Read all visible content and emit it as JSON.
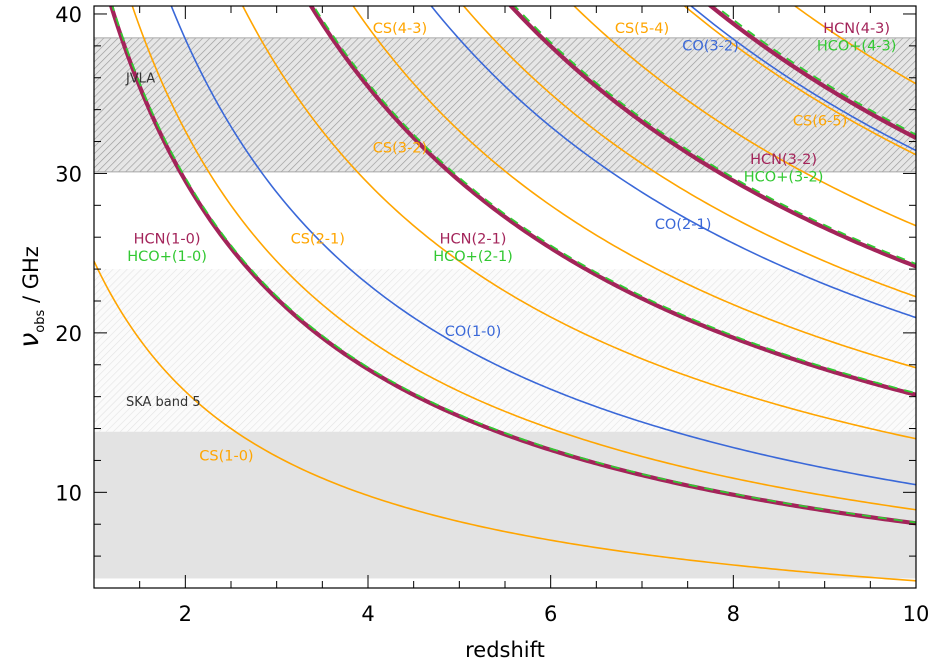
{
  "chart_data": {
    "type": "line",
    "xlabel": "redshift",
    "ylabel": {
      "symbol": "ν",
      "subscript": "obs",
      "unit": " / GHz"
    },
    "xlim": [
      1,
      10
    ],
    "ylim": [
      4,
      40.5
    ],
    "x_ticks": [
      2,
      4,
      6,
      8,
      10
    ],
    "y_ticks": [
      10,
      20,
      30,
      40
    ],
    "x_minor_step": 0.5,
    "y_minor_step": 2,
    "grid": false,
    "colors": {
      "CS": "#ffa500",
      "CO": "#3a68d8",
      "HCN": "#a3245a",
      "HCO+": "#32c832",
      "band_hatch": "#9e9e9e",
      "band_fill_ska_low": "#e3e3e3"
    },
    "bands": [
      {
        "name": "JVLA",
        "label": "JVLA",
        "ymin": 30.1,
        "ymax": 38.5,
        "style": "hatch-dense",
        "label_x": 1.35,
        "label_y": 35.7
      },
      {
        "name": "SKA band 5",
        "label": "SKA band 5",
        "ymin": 13.8,
        "ymax": 24.0,
        "style": "hatch-light",
        "label_x": 1.35,
        "label_y": 15.4
      },
      {
        "name": "SKA band 5 lower",
        "label": "",
        "ymin": 4.6,
        "ymax": 13.8,
        "style": "fill",
        "label_x": null,
        "label_y": null
      }
    ],
    "series": [
      {
        "name": "CS(1-0)",
        "species": "CS",
        "rest_ghz": 48.99,
        "label": "CS(1-0)",
        "label_x": 2.45,
        "label_y": 12.0
      },
      {
        "name": "CS(2-1)",
        "species": "CS",
        "rest_ghz": 97.98,
        "label": "CS(2-1)",
        "label_x": 3.45,
        "label_y": 25.6
      },
      {
        "name": "CS(3-2)",
        "species": "CS",
        "rest_ghz": 146.97,
        "label": "CS(3-2)",
        "label_x": 4.35,
        "label_y": 31.3
      },
      {
        "name": "CS(4-3)",
        "species": "CS",
        "rest_ghz": 195.95,
        "label": "CS(4-3)",
        "label_x": 4.35,
        "label_y": 38.8
      },
      {
        "name": "CS(5-4)",
        "species": "CS",
        "rest_ghz": 244.94,
        "label": "CS(5-4)",
        "label_x": 7.0,
        "label_y": 38.8
      },
      {
        "name": "CS(6-5)",
        "species": "CS",
        "rest_ghz": 293.91,
        "label": "CS(6-5)",
        "label_x": 8.95,
        "label_y": 33.0
      },
      {
        "name": "CS(7-6)",
        "species": "CS",
        "rest_ghz": 342.88,
        "label": "",
        "label_x": null,
        "label_y": null
      },
      {
        "name": "CS(8-7)",
        "species": "CS",
        "rest_ghz": 391.85,
        "label": "",
        "label_x": null,
        "label_y": null
      },
      {
        "name": "CO(1-0)",
        "species": "CO",
        "rest_ghz": 115.27,
        "label": "CO(1-0)",
        "label_x": 5.15,
        "label_y": 19.8
      },
      {
        "name": "CO(2-1)",
        "species": "CO",
        "rest_ghz": 230.54,
        "label": "CO(2-1)",
        "label_x": 7.45,
        "label_y": 26.5
      },
      {
        "name": "CO(3-2)",
        "species": "CO",
        "rest_ghz": 345.8,
        "label": "CO(3-2)",
        "label_x": 7.75,
        "label_y": 37.7
      },
      {
        "name": "HCN(1-0)",
        "species": "HCN",
        "rest_ghz": 88.63,
        "label": "HCN(1-0)",
        "label_x": 1.8,
        "label_y": 25.6
      },
      {
        "name": "HCN(2-1)",
        "species": "HCN",
        "rest_ghz": 177.26,
        "label": "HCN(2-1)",
        "label_x": 5.15,
        "label_y": 25.6
      },
      {
        "name": "HCN(3-2)",
        "species": "HCN",
        "rest_ghz": 265.89,
        "label": "HCN(3-2)",
        "label_x": 8.55,
        "label_y": 30.6
      },
      {
        "name": "HCN(4-3)",
        "species": "HCN",
        "rest_ghz": 354.51,
        "label": "HCN(4-3)",
        "label_x": 9.35,
        "label_y": 38.8
      },
      {
        "name": "HCO+(1-0)",
        "species": "HCO+",
        "rest_ghz": 89.19,
        "label": "HCO+(1-0)",
        "label_x": 1.8,
        "label_y": 24.5
      },
      {
        "name": "HCO+(2-1)",
        "species": "HCO+",
        "rest_ghz": 178.38,
        "label": "HCO+(2-1)",
        "label_x": 5.15,
        "label_y": 24.5
      },
      {
        "name": "HCO+(3-2)",
        "species": "HCO+",
        "rest_ghz": 267.56,
        "label": "HCO+(3-2)",
        "label_x": 8.55,
        "label_y": 29.5
      },
      {
        "name": "HCO+(4-3)",
        "species": "HCO+",
        "rest_ghz": 356.73,
        "label": "HCO+(4-3)",
        "label_x": 9.35,
        "label_y": 37.7
      }
    ]
  }
}
